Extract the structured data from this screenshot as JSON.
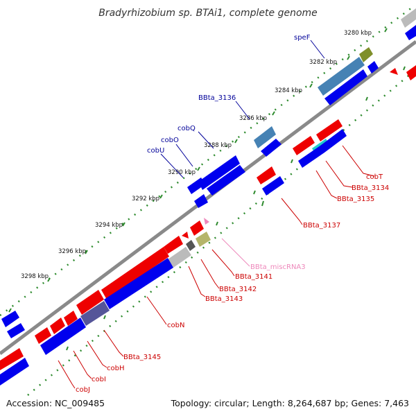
{
  "title": "Bradyrhizobium sp. BTAi1, complete genome",
  "footer": {
    "accession": "Accession: NC_009485",
    "topology": "Topology: circular; Length: 8,264,687 bp; Genes: 7,463"
  },
  "colors": {
    "backbone": "#8a8a8a",
    "forward": "#0000ee",
    "reverse": "#ee0000",
    "tick": "#2e8b2e",
    "fwd_label": "#000099",
    "rev_label": "#cc0000",
    "misc_rna": "#ee88bb",
    "steelblue_feature": "#4682b4",
    "olive_feature": "#7f8f2a",
    "cyan_feature": "#22cccc",
    "gray_feature": "#bbbbbb"
  },
  "scale_labels": [
    "3280 kbp",
    "3282 kbp",
    "3284 kbp",
    "3286 kbp",
    "3288 kbp",
    "3290 kbp",
    "3292 kbp",
    "3294 kbp",
    "3296 kbp",
    "3298 kbp"
  ],
  "gene_labels": {
    "top": [
      "speF",
      "BBta_3136",
      "cobQ",
      "cobO",
      "cobU"
    ],
    "bottom": [
      "cobT",
      "BBta_3134",
      "BBta_3135",
      "BBta_3137",
      "BBta_miscRNA3",
      "BBta_3141",
      "BBta_3142",
      "BBta_3143",
      "cobN",
      "BBta_3145",
      "cobH",
      "cobI",
      "cobJ"
    ]
  }
}
